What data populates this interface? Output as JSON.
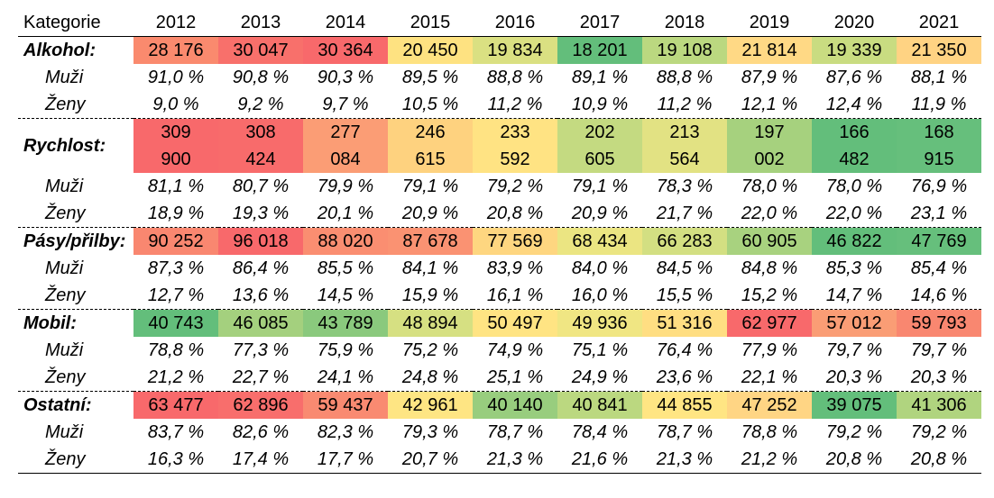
{
  "table": {
    "header_label": "Kategorie",
    "years": [
      "2012",
      "2013",
      "2014",
      "2015",
      "2016",
      "2017",
      "2018",
      "2019",
      "2020",
      "2021"
    ],
    "groups": [
      {
        "label": "Alkohol:",
        "values": [
          "28 176",
          "30 047",
          "30 364",
          "20 450",
          "19 834",
          "18 201",
          "19 108",
          "21 814",
          "19 339",
          "21 350"
        ],
        "colors": [
          "#fa8a6e",
          "#f8706b",
          "#f8696b",
          "#fee281",
          "#dae082",
          "#63be7b",
          "#bbd880",
          "#ffd985",
          "#c9dc81",
          "#ffd383"
        ],
        "men_label": "Muži",
        "men": [
          "91,0 %",
          "90,8 %",
          "90,3 %",
          "89,5 %",
          "88,8 %",
          "89,1 %",
          "88,8 %",
          "87,9 %",
          "87,6 %",
          "88,1 %"
        ],
        "women_label": "Ženy",
        "women": [
          "9,0 %",
          "9,2 %",
          "9,7 %",
          "10,5 %",
          "11,2 %",
          "10,9 %",
          "11,2 %",
          "12,1 %",
          "12,4 %",
          "11,9 %"
        ]
      },
      {
        "label": "Rychlost:",
        "values": [
          [
            "309",
            "900"
          ],
          [
            "308",
            "424"
          ],
          [
            "277",
            "084"
          ],
          [
            "246",
            "615"
          ],
          [
            "233",
            "592"
          ],
          [
            "202",
            "605"
          ],
          [
            "213",
            "564"
          ],
          [
            "197",
            "002"
          ],
          [
            "166",
            "482"
          ],
          [
            "168",
            "915"
          ]
        ],
        "colors": [
          "#f8696b",
          "#f86b6b",
          "#fb9d75",
          "#fed27f",
          "#ffe383",
          "#c4da81",
          "#e2e283",
          "#a6d17e",
          "#63be7b",
          "#66bf7c"
        ],
        "men_label": "Muži",
        "men": [
          "81,1 %",
          "80,7 %",
          "79,9 %",
          "79,1 %",
          "79,2 %",
          "79,1 %",
          "78,3 %",
          "78,0 %",
          "78,0 %",
          "76,9 %"
        ],
        "women_label": "Ženy",
        "women": [
          "18,9 %",
          "19,3 %",
          "20,1 %",
          "20,9 %",
          "20,8 %",
          "20,9 %",
          "21,7 %",
          "22,0 %",
          "22,0 %",
          "23,1 %"
        ]
      },
      {
        "label": "Pásy/přilby:",
        "values": [
          "90 252",
          "96 018",
          "88 020",
          "87 678",
          "77 569",
          "68 434",
          "66 283",
          "60 905",
          "46 822",
          "47 769"
        ],
        "colors": [
          "#f98770",
          "#f8696b",
          "#fa8e71",
          "#fa9272",
          "#fed680",
          "#ebe582",
          "#d3df82",
          "#a8d27f",
          "#63be7b",
          "#66bf7c"
        ],
        "men_label": "Muži",
        "men": [
          "87,3 %",
          "86,4 %",
          "85,5 %",
          "84,1 %",
          "83,9 %",
          "84,0 %",
          "84,5 %",
          "84,8 %",
          "85,3 %",
          "85,4 %"
        ],
        "women_label": "Ženy",
        "women": [
          "12,7 %",
          "13,6 %",
          "14,5 %",
          "15,9 %",
          "16,1 %",
          "16,0 %",
          "15,5 %",
          "15,2 %",
          "14,7 %",
          "14,6 %"
        ]
      },
      {
        "label": "Mobil:",
        "values": [
          "40 743",
          "46 085",
          "43 789",
          "48 894",
          "50 497",
          "49 936",
          "51 316",
          "62 977",
          "57 012",
          "59 793"
        ],
        "colors": [
          "#63be7b",
          "#a4d07e",
          "#8ac97d",
          "#d6e082",
          "#ffe483",
          "#f0e683",
          "#ffde82",
          "#f8696b",
          "#fa9d75",
          "#f98770"
        ],
        "men_label": "Muži",
        "men": [
          "78,8 %",
          "77,3 %",
          "75,9 %",
          "75,2 %",
          "74,9 %",
          "75,1 %",
          "76,4 %",
          "77,9 %",
          "79,7 %",
          "79,7 %"
        ],
        "women_label": "Ženy",
        "women": [
          "21,2 %",
          "22,7 %",
          "24,1 %",
          "24,8 %",
          "25,1 %",
          "24,9 %",
          "23,6 %",
          "22,1 %",
          "20,3 %",
          "20,3 %"
        ]
      },
      {
        "label": "Ostatní:",
        "values": [
          "63 477",
          "62 896",
          "59 437",
          "42 961",
          "40 140",
          "40 841",
          "44 855",
          "47 252",
          "39 075",
          "41 306"
        ],
        "colors": [
          "#f8696b",
          "#f86e6c",
          "#f98a71",
          "#fee583",
          "#98cd7e",
          "#bbd880",
          "#ffe583",
          "#ffd584",
          "#63be7b",
          "#b0d47f"
        ],
        "men_label": "Muži",
        "men": [
          "83,7 %",
          "82,6 %",
          "82,3 %",
          "79,3 %",
          "78,7 %",
          "78,4 %",
          "78,7 %",
          "78,8 %",
          "79,2 %",
          "79,2 %"
        ],
        "women_label": "Ženy",
        "women": [
          "16,3 %",
          "17,4 %",
          "17,7 %",
          "20,7 %",
          "21,3 %",
          "21,6 %",
          "21,3 %",
          "21,2 %",
          "20,8 %",
          "20,8 %"
        ]
      }
    ]
  }
}
